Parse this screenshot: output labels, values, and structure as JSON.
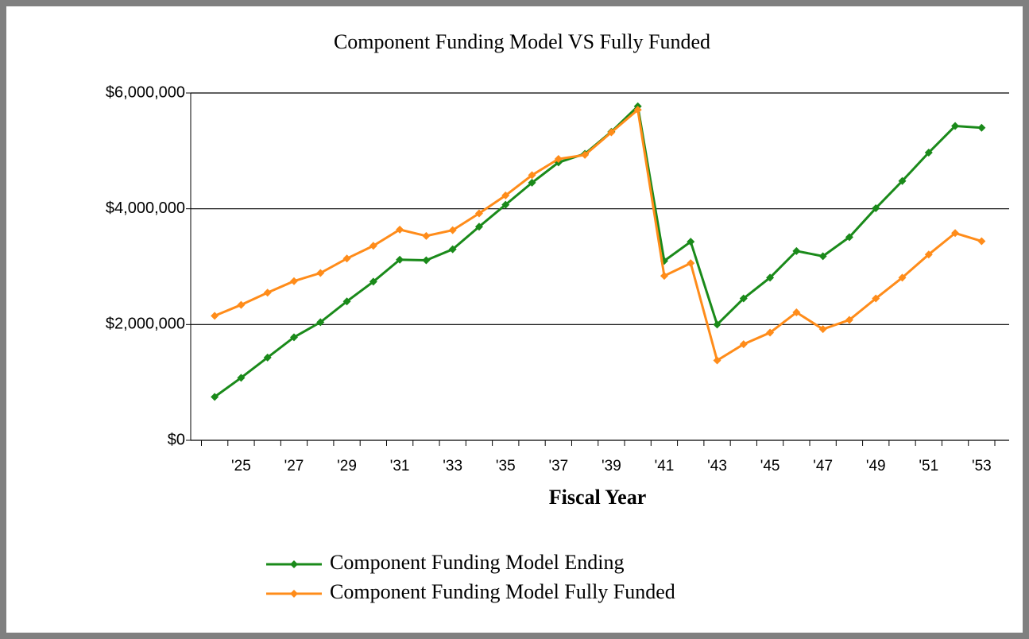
{
  "chart_data": {
    "type": "line",
    "title": "Component Funding Model VS Fully Funded",
    "x_label": "Fiscal Year",
    "categories": [
      null,
      "'25",
      null,
      "'27",
      null,
      "'29",
      null,
      "'31",
      null,
      "'33",
      null,
      "'35",
      null,
      "'37",
      null,
      "'39",
      null,
      "'41",
      null,
      "'43",
      null,
      "'45",
      null,
      "'47",
      null,
      "'49",
      null,
      "'51",
      null,
      "'53"
    ],
    "series": [
      {
        "name": "Component Funding Model Ending",
        "color": "#1a8a1a",
        "values": [
          750000,
          1080000,
          1430000,
          1780000,
          2040000,
          2400000,
          2740000,
          3120000,
          3110000,
          3300000,
          3690000,
          4070000,
          4450000,
          4800000,
          4950000,
          5330000,
          5770000,
          3100000,
          3430000,
          2000000,
          2450000,
          2810000,
          3270000,
          3180000,
          3510000,
          4010000,
          4480000,
          4970000,
          5430000,
          5400000
        ]
      },
      {
        "name": "Component Funding Model Fully Funded",
        "color": "#ff8c1a",
        "values": [
          2150000,
          2340000,
          2550000,
          2750000,
          2890000,
          3140000,
          3360000,
          3640000,
          3530000,
          3630000,
          3920000,
          4230000,
          4580000,
          4860000,
          4930000,
          5320000,
          5710000,
          2840000,
          3060000,
          1380000,
          1660000,
          1860000,
          2210000,
          1920000,
          2080000,
          2450000,
          2810000,
          3210000,
          3580000,
          3440000
        ]
      }
    ],
    "ylim": [
      0,
      6000000
    ],
    "yticks": [
      {
        "value": 0,
        "label": "$0"
      },
      {
        "value": 2000000,
        "label": "$2,000,000"
      },
      {
        "value": 4000000,
        "label": "$4,000,000"
      },
      {
        "value": 6000000,
        "label": "$6,000,000"
      }
    ],
    "grid": true,
    "legend": "bottom"
  }
}
